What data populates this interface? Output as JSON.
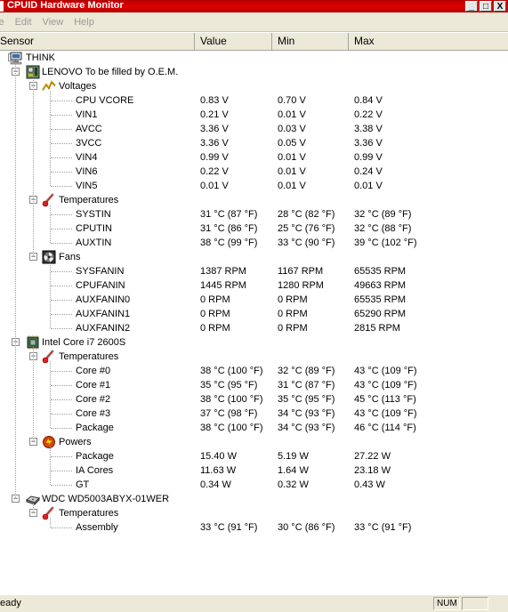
{
  "window": {
    "title": "CPUID Hardware Monitor",
    "minimize_glyph": "_",
    "maximize_glyph": "□",
    "close_glyph": "X"
  },
  "menu": [
    "le",
    "Edit",
    "View",
    "Help"
  ],
  "columns": {
    "sensor": "Sensor",
    "value": "Value",
    "min": "Min",
    "max": "Max"
  },
  "tree": [
    {
      "depth": 0,
      "type": "root",
      "label": "THINK",
      "icon": "computer-icon"
    },
    {
      "depth": 1,
      "type": "device",
      "label": "LENOVO To be filled by O.E.M.",
      "icon": "motherboard-icon"
    },
    {
      "depth": 2,
      "type": "group",
      "label": "Voltages",
      "icon": "voltage-icon"
    },
    {
      "depth": 3,
      "type": "sensor",
      "label": "CPU VCORE",
      "value": "0.83 V",
      "min": "0.70 V",
      "max": "0.84 V"
    },
    {
      "depth": 3,
      "type": "sensor",
      "label": "VIN1",
      "value": "0.21 V",
      "min": "0.01 V",
      "max": "0.22 V"
    },
    {
      "depth": 3,
      "type": "sensor",
      "label": "AVCC",
      "value": "3.36 V",
      "min": "0.03 V",
      "max": "3.38 V"
    },
    {
      "depth": 3,
      "type": "sensor",
      "label": "3VCC",
      "value": "3.36 V",
      "min": "0.05 V",
      "max": "3.36 V"
    },
    {
      "depth": 3,
      "type": "sensor",
      "label": "VIN4",
      "value": "0.99 V",
      "min": "0.01 V",
      "max": "0.99 V"
    },
    {
      "depth": 3,
      "type": "sensor",
      "label": "VIN6",
      "value": "0.22 V",
      "min": "0.01 V",
      "max": "0.24 V"
    },
    {
      "depth": 3,
      "type": "sensor",
      "label": "VIN5",
      "value": "0.01 V",
      "min": "0.01 V",
      "max": "0.01 V"
    },
    {
      "depth": 2,
      "type": "group",
      "label": "Temperatures",
      "icon": "thermometer-icon"
    },
    {
      "depth": 3,
      "type": "sensor",
      "label": "SYSTIN",
      "value": "31 °C  (87 °F)",
      "min": "28 °C  (82 °F)",
      "max": "32 °C  (89 °F)"
    },
    {
      "depth": 3,
      "type": "sensor",
      "label": "CPUTIN",
      "value": "31 °C  (86 °F)",
      "min": "25 °C  (76 °F)",
      "max": "32 °C  (88 °F)"
    },
    {
      "depth": 3,
      "type": "sensor",
      "label": "AUXTIN",
      "value": "38 °C  (99 °F)",
      "min": "33 °C  (90 °F)",
      "max": "39 °C  (102 °F)"
    },
    {
      "depth": 2,
      "type": "group",
      "label": "Fans",
      "icon": "fan-icon"
    },
    {
      "depth": 3,
      "type": "sensor",
      "label": "SYSFANIN",
      "value": "1387 RPM",
      "min": "1167 RPM",
      "max": "65535 RPM"
    },
    {
      "depth": 3,
      "type": "sensor",
      "label": "CPUFANIN",
      "value": "1445 RPM",
      "min": "1280 RPM",
      "max": "49663 RPM"
    },
    {
      "depth": 3,
      "type": "sensor",
      "label": "AUXFANIN0",
      "value": "0 RPM",
      "min": "0 RPM",
      "max": "65535 RPM"
    },
    {
      "depth": 3,
      "type": "sensor",
      "label": "AUXFANIN1",
      "value": "0 RPM",
      "min": "0 RPM",
      "max": "65290 RPM"
    },
    {
      "depth": 3,
      "type": "sensor",
      "label": "AUXFANIN2",
      "value": "0 RPM",
      "min": "0 RPM",
      "max": "2815 RPM"
    },
    {
      "depth": 1,
      "type": "device",
      "label": "Intel Core i7 2600S",
      "icon": "cpu-icon"
    },
    {
      "depth": 2,
      "type": "group",
      "label": "Temperatures",
      "icon": "thermometer-icon"
    },
    {
      "depth": 3,
      "type": "sensor",
      "label": "Core #0",
      "value": "38 °C  (100 °F)",
      "min": "32 °C  (89 °F)",
      "max": "43 °C  (109 °F)"
    },
    {
      "depth": 3,
      "type": "sensor",
      "label": "Core #1",
      "value": "35 °C  (95 °F)",
      "min": "31 °C  (87 °F)",
      "max": "43 °C  (109 °F)"
    },
    {
      "depth": 3,
      "type": "sensor",
      "label": "Core #2",
      "value": "38 °C  (100 °F)",
      "min": "35 °C  (95 °F)",
      "max": "45 °C  (113 °F)"
    },
    {
      "depth": 3,
      "type": "sensor",
      "label": "Core #3",
      "value": "37 °C  (98 °F)",
      "min": "34 °C  (93 °F)",
      "max": "43 °C  (109 °F)"
    },
    {
      "depth": 3,
      "type": "sensor",
      "label": "Package",
      "value": "38 °C  (100 °F)",
      "min": "34 °C  (93 °F)",
      "max": "46 °C  (114 °F)"
    },
    {
      "depth": 2,
      "type": "group",
      "label": "Powers",
      "icon": "power-icon"
    },
    {
      "depth": 3,
      "type": "sensor",
      "label": "Package",
      "value": "15.40 W",
      "min": "5.19 W",
      "max": "27.22 W"
    },
    {
      "depth": 3,
      "type": "sensor",
      "label": "IA Cores",
      "value": "11.63 W",
      "min": "1.64 W",
      "max": "23.18 W"
    },
    {
      "depth": 3,
      "type": "sensor",
      "label": "GT",
      "value": "0.34 W",
      "min": "0.32 W",
      "max": "0.43 W"
    },
    {
      "depth": 1,
      "type": "device",
      "label": "WDC WD5003ABYX-01WER",
      "icon": "hard-drive-icon"
    },
    {
      "depth": 2,
      "type": "group",
      "label": "Temperatures",
      "icon": "thermometer-icon"
    },
    {
      "depth": 3,
      "type": "sensor",
      "label": "Assembly",
      "value": "33 °C  (91 °F)",
      "min": "30 °C  (86 °F)",
      "max": "33 °C  (91 °F)"
    }
  ],
  "status": {
    "text": "eady",
    "num": "NUM"
  }
}
